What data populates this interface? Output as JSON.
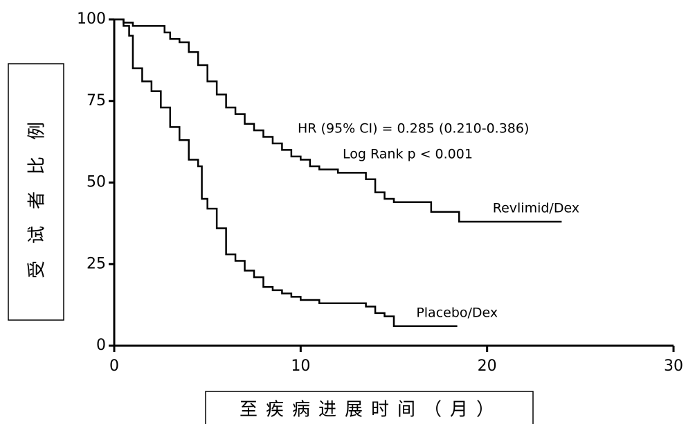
{
  "chart_data": {
    "type": "line",
    "step": true,
    "x_label": "至疾病进展时间（月）",
    "y_label": "受试者比例",
    "annotations": [
      "HR (95% CI) = 0.285 (0.210-0.386)",
      "Log Rank p < 0.001"
    ],
    "xlim": [
      0,
      30
    ],
    "xticks": [
      0,
      10,
      20,
      30
    ],
    "ylim": [
      0,
      100
    ],
    "yticks": [
      0,
      25,
      50,
      75,
      100
    ],
    "series": [
      {
        "name": "Revlimid/Dex",
        "color": "#000000",
        "x": [
          0,
          0.5,
          1,
          2,
          2.7,
          3,
          3.5,
          4,
          4.5,
          5,
          5.5,
          6,
          6.5,
          7,
          7.5,
          8,
          8.5,
          9,
          9.5,
          10,
          10.5,
          11,
          12,
          13,
          13.5,
          14,
          14.5,
          15,
          16,
          17,
          18,
          18.5,
          20,
          22,
          24
        ],
        "values": [
          100,
          99,
          98,
          98,
          96,
          94,
          93,
          90,
          86,
          81,
          77,
          73,
          71,
          68,
          66,
          64,
          62,
          60,
          58,
          57,
          55,
          54,
          53,
          53,
          51,
          47,
          45,
          44,
          44,
          41,
          41,
          38,
          38,
          38,
          38
        ]
      },
      {
        "name": "Placebo/Dex",
        "color": "#000000",
        "x": [
          0,
          0.5,
          0.8,
          1,
          1.5,
          2,
          2.5,
          3,
          3.5,
          4,
          4.5,
          4.7,
          5,
          5.5,
          6,
          6.5,
          7,
          7.5,
          8,
          8.5,
          9,
          9.5,
          10,
          11,
          12,
          13,
          13.5,
          14,
          14.5,
          15,
          16,
          17,
          18.4
        ],
        "values": [
          100,
          98,
          95,
          85,
          81,
          78,
          73,
          67,
          63,
          57,
          55,
          45,
          42,
          36,
          28,
          26,
          23,
          21,
          18,
          17,
          16,
          15,
          14,
          13,
          13,
          13,
          12,
          10,
          9,
          6,
          6,
          6,
          6
        ]
      }
    ]
  }
}
